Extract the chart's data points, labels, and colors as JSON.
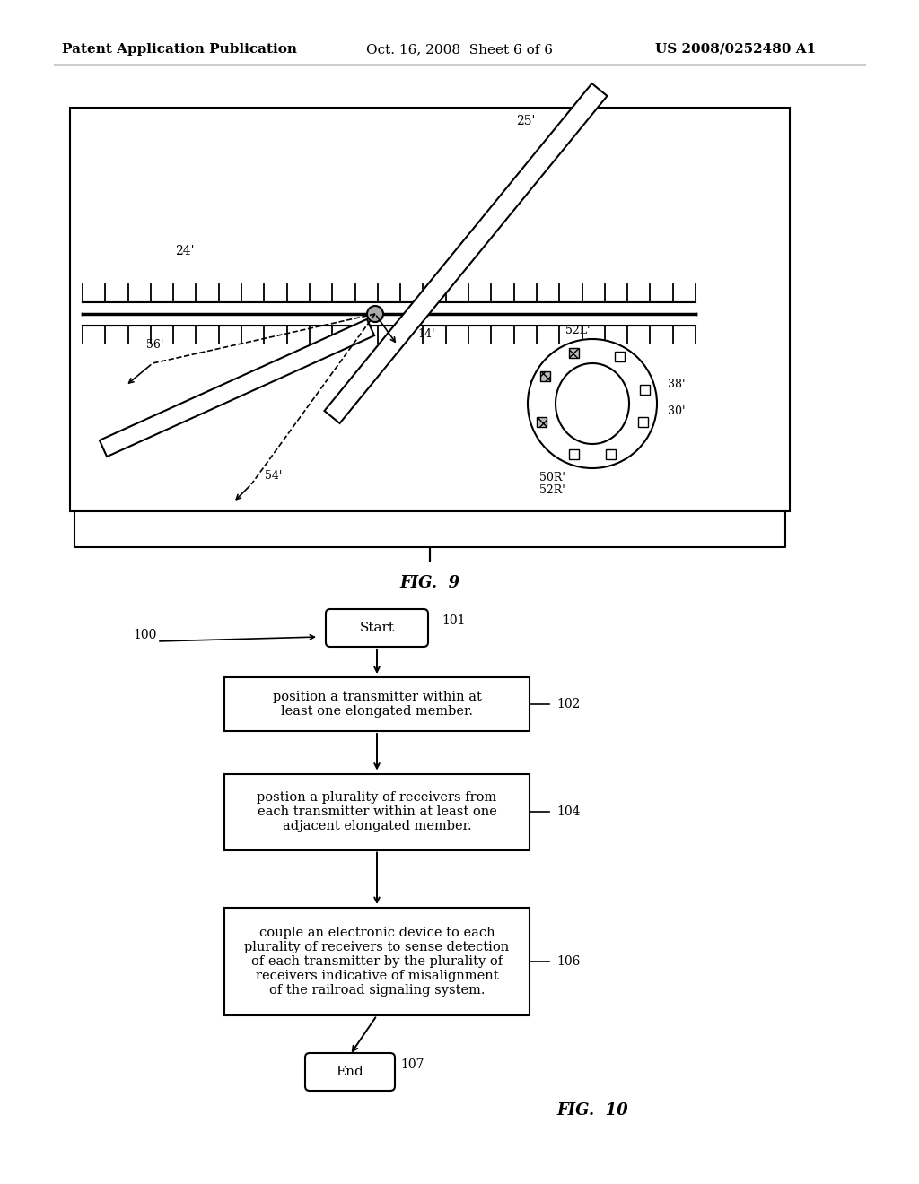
{
  "bg_color": "#ffffff",
  "header_left": "Patent Application Publication",
  "header_mid": "Oct. 16, 2008  Sheet 6 of 6",
  "header_right": "US 2008/0252480 A1",
  "fig9_label": "FIG.  9",
  "fig10_label": "FIG.  10",
  "flowchart": {
    "start_label": "Start",
    "start_ref": "101",
    "box1_text": "position a transmitter within at\nleast one elongated member.",
    "box1_ref": "102",
    "box2_text": "postion a plurality of receivers from\neach transmitter within at least one\nadjacent elongated member.",
    "box2_ref": "104",
    "box3_text": "couple an electronic device to each\nplurality of receivers to sense detection\nof each transmitter by the plurality of\nreceivers indicative of misalignment\nof the railroad signaling system.",
    "box3_ref": "106",
    "end_label": "End",
    "end_ref": "107",
    "flow100_label": "100"
  }
}
